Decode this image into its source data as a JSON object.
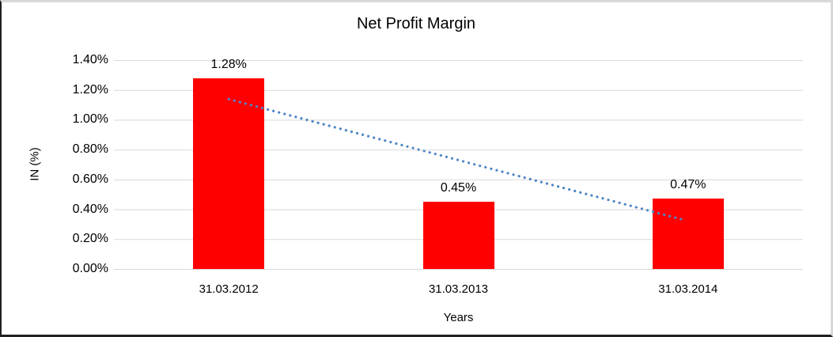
{
  "chart_data": {
    "type": "bar",
    "title": "Net Profit Margin",
    "xlabel": "Years",
    "ylabel": "IN (%)",
    "categories": [
      "31.03.2012",
      "31.03.2013",
      "31.03.2014"
    ],
    "values": [
      1.28,
      0.45,
      0.47
    ],
    "data_labels": [
      "1.28%",
      "0.45%",
      "0.47%"
    ],
    "y_tick_labels": [
      "0.00%",
      "0.20%",
      "0.40%",
      "0.60%",
      "0.80%",
      "1.00%",
      "1.20%",
      "1.40%"
    ],
    "y_tick_values": [
      0,
      0.2,
      0.4,
      0.6,
      0.8,
      1.0,
      1.2,
      1.4
    ],
    "ylim": [
      0,
      1.4
    ],
    "grid": true,
    "legend_position": "none",
    "bar_color": "#ff0000",
    "gridline_color": "#d9d9d9",
    "trendline": {
      "type": "linear",
      "style": "dotted",
      "color": "#4f86c6"
    }
  }
}
